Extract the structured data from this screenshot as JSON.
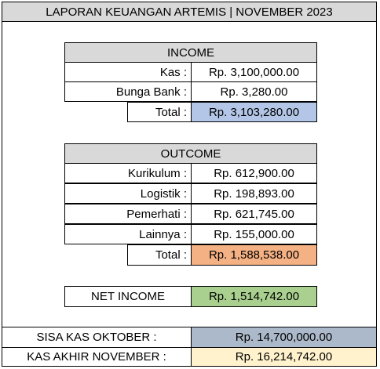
{
  "title": "LAPORAN KEUANGAN ARTEMIS | NOVEMBER 2023",
  "income": {
    "header": "INCOME",
    "rows": [
      {
        "label": "Kas :",
        "value": "Rp. 3,100,000.00"
      },
      {
        "label": "Bunga Bank :",
        "value": "Rp. 3,280.00"
      }
    ],
    "total_label": "Total :",
    "total_value": "Rp. 3,103,280.00",
    "total_color": "#b4c6e7"
  },
  "outcome": {
    "header": "OUTCOME",
    "rows": [
      {
        "label": "Kurikulum :",
        "value": "Rp. 612,900.00"
      },
      {
        "label": "Logistik :",
        "value": "Rp. 198,893.00"
      },
      {
        "label": "Pemerhati :",
        "value": "Rp. 621,745.00"
      },
      {
        "label": "Lainnya :",
        "value": "Rp. 155,000.00"
      }
    ],
    "total_label": "Total :",
    "total_value": "Rp. 1,588,538.00",
    "total_color": "#f4b183"
  },
  "net": {
    "label": "NET INCOME",
    "value": "Rp. 1,514,742.00",
    "color": "#a9d08e"
  },
  "summary": [
    {
      "label": "SISA KAS OKTOBER :",
      "value": "Rp. 14,700,000.00",
      "color": "#acb9ca"
    },
    {
      "label": "KAS AKHIR NOVEMBER :",
      "value": "Rp. 16,214,742.00",
      "color": "#fff2cc"
    }
  ]
}
